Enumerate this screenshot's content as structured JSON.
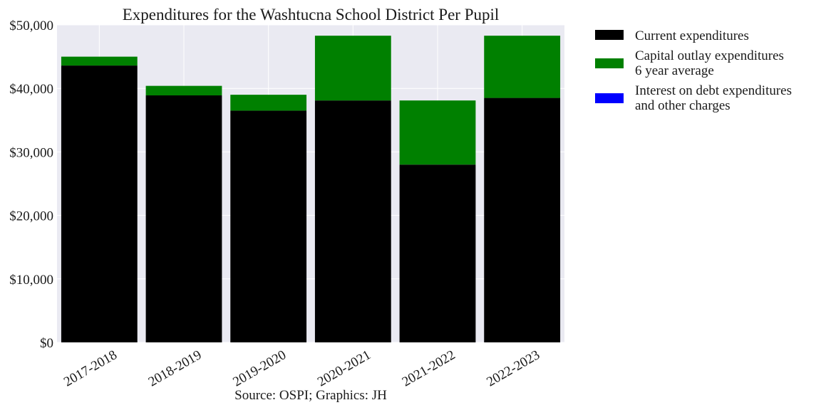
{
  "chart_data": {
    "type": "bar",
    "stacked": true,
    "title": "Expenditures for the Washtucna School District Per Pupil",
    "xlabel": "Source: OSPI; Graphics: JH",
    "ylabel": "",
    "categories": [
      "2017-2018",
      "2018-2019",
      "2019-2020",
      "2020-2021",
      "2021-2022",
      "2022-2023"
    ],
    "series": [
      {
        "name": "Current expenditures",
        "color": "#000000",
        "values": [
          43600,
          38900,
          36500,
          38100,
          28000,
          38500
        ]
      },
      {
        "name": "Capital outlay expenditures\n6 year average",
        "color": "#008000",
        "values": [
          1400,
          1500,
          2500,
          10200,
          10100,
          9800
        ]
      },
      {
        "name": "Interest on debt expenditures\nand other charges",
        "color": "#0000ff",
        "values": [
          0,
          0,
          0,
          0,
          0,
          0
        ]
      }
    ],
    "ylim": [
      0,
      50000
    ],
    "yticks": [
      0,
      10000,
      20000,
      30000,
      40000,
      50000
    ],
    "ytick_labels": [
      "$0",
      "$10,000",
      "$20,000",
      "$30,000",
      "$40,000",
      "$50,000"
    ],
    "grid": true,
    "legend_position": "outside-right-top"
  }
}
